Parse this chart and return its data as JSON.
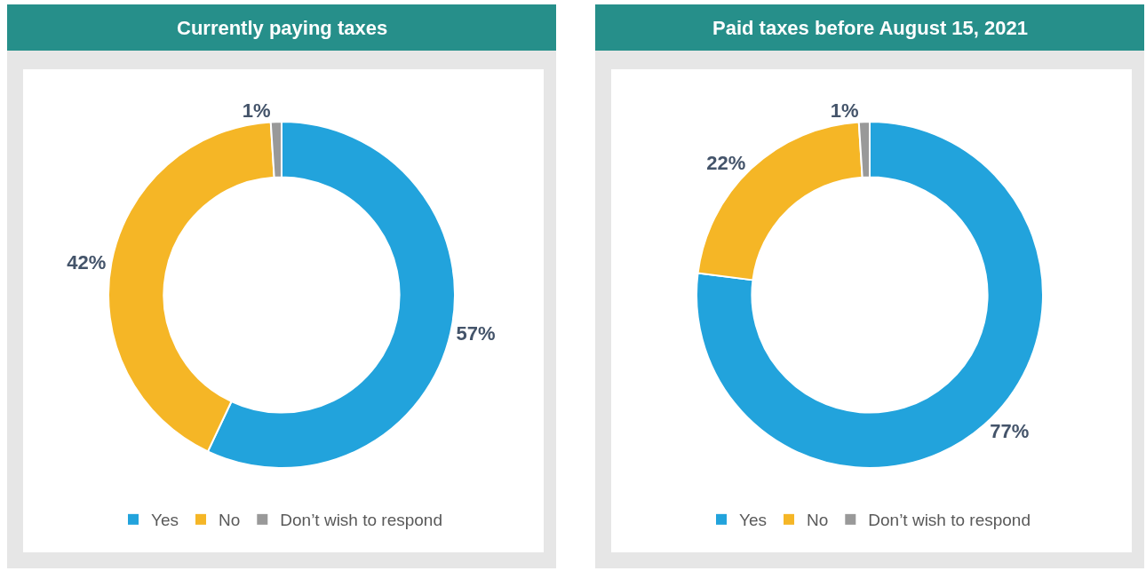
{
  "chart_data": [
    {
      "type": "donut",
      "title": "Currently paying taxes",
      "categories": [
        "Yes",
        "No",
        "Don’t wish to respond"
      ],
      "values": [
        57,
        42,
        1
      ],
      "colors": [
        "#22a3dc",
        "#f5b626",
        "#999999"
      ],
      "value_labels": [
        "57%",
        "42%",
        "1%"
      ],
      "legend": "bottom"
    },
    {
      "type": "donut",
      "title": "Paid taxes before August 15, 2021",
      "categories": [
        "Yes",
        "No",
        "Don’t wish to respond"
      ],
      "values": [
        77,
        22,
        1
      ],
      "colors": [
        "#22a3dc",
        "#f5b626",
        "#999999"
      ],
      "value_labels": [
        "77%",
        "22%",
        "1%"
      ],
      "legend": "bottom"
    }
  ]
}
